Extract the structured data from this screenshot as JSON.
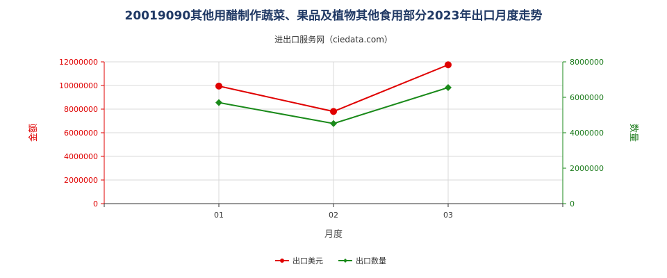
{
  "title": "20019090其他用醋制作蔬菜、果品及植物其他食用部分2023年出口月度走势",
  "subtitle": "进出口服务网（ciedata.com）",
  "colors": {
    "title": "#1f3864",
    "series1": "#e00000",
    "series2": "#1a8a1a",
    "grid": "#d9d9d9"
  },
  "chart_data": {
    "type": "line",
    "categories": [
      "01",
      "02",
      "03"
    ],
    "xlabel": "月度",
    "ylabel_left": "金额",
    "ylabel_right": "数量",
    "ylim_left": [
      0,
      12000000
    ],
    "ylim_right": [
      0,
      8000000
    ],
    "yticks_left": [
      0,
      2000000,
      4000000,
      6000000,
      8000000,
      10000000,
      12000000
    ],
    "yticks_right": [
      0,
      2000000,
      4000000,
      6000000,
      8000000
    ],
    "grid": true,
    "legend_position": "bottom",
    "series": [
      {
        "name": "出口美元",
        "axis": "left",
        "color": "#e00000",
        "marker": "circle",
        "values": [
          9950000,
          7800000,
          11750000
        ]
      },
      {
        "name": "出口数量",
        "axis": "right",
        "color": "#1a8a1a",
        "marker": "diamond",
        "values": [
          5700000,
          4520000,
          6550000
        ]
      }
    ]
  }
}
